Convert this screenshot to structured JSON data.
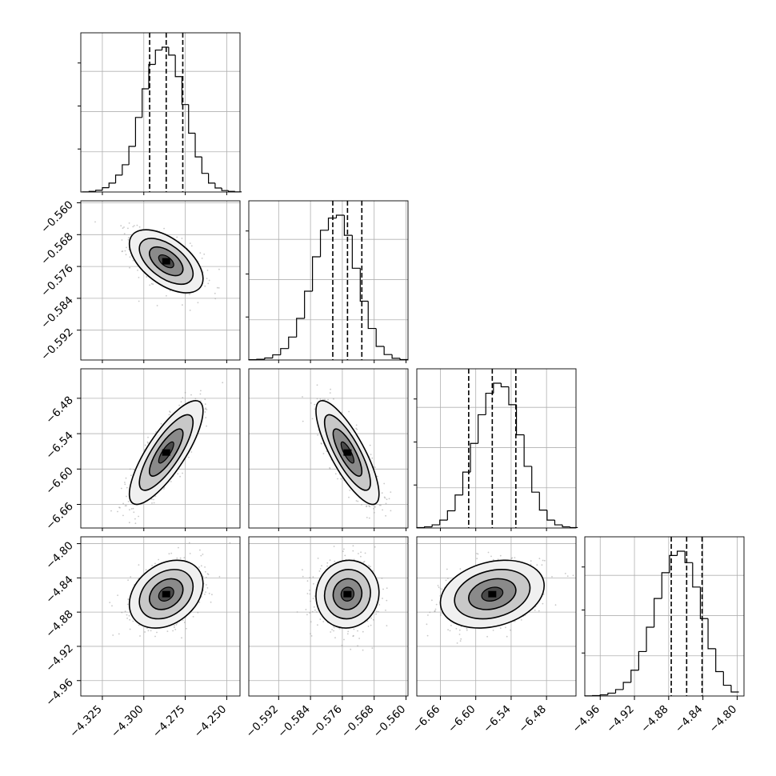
{
  "chart_data": {
    "type": "corner",
    "grid": true,
    "histogram_quantile_lines": "dashed",
    "parameters": [
      {
        "range": [
          -4.338,
          -4.242
        ],
        "ticks": [
          -4.325,
          -4.3,
          -4.275,
          -4.25
        ],
        "tick_labels": [
          "−4.325",
          "−4.300",
          "−4.275",
          "−4.250"
        ],
        "quantiles": [
          -4.2965,
          -4.2865,
          -4.2765
        ],
        "mean": -4.2865,
        "std": 0.0101,
        "hist_bins_x": [
          -4.335,
          -4.331,
          -4.327,
          -4.323,
          -4.319,
          -4.315,
          -4.311,
          -4.307,
          -4.303,
          -4.299,
          -4.295,
          -4.291,
          -4.287,
          -4.283,
          -4.279,
          -4.275,
          -4.271,
          -4.267,
          -4.263,
          -4.259,
          -4.255,
          -4.251,
          -4.247,
          -4.243
        ],
        "hist_counts": [
          1,
          4,
          12,
          30,
          62,
          118,
          190,
          318,
          520,
          720,
          890,
          990,
          1010,
          955,
          805,
          610,
          410,
          245,
          130,
          62,
          28,
          10,
          4,
          1
        ]
      },
      {
        "range": [
          -0.5995,
          -0.5595
        ],
        "ticks": [
          -0.592,
          -0.584,
          -0.576,
          -0.568,
          -0.56
        ],
        "tick_labels": [
          "−0.592",
          "−0.584",
          "−0.576",
          "−0.568",
          "−0.560"
        ],
        "quantiles": [
          -0.5784,
          -0.5747,
          -0.5711
        ],
        "mean": -0.5747,
        "std": 0.0036,
        "hist_bins_x": [
          -0.5985,
          -0.5965,
          -0.5945,
          -0.5925,
          -0.5905,
          -0.5885,
          -0.5865,
          -0.5845,
          -0.5825,
          -0.5805,
          -0.5785,
          -0.5765,
          -0.5745,
          -0.5725,
          -0.5705,
          -0.5685,
          -0.5665,
          -0.5645,
          -0.5625,
          -0.5605
        ],
        "hist_counts": [
          2,
          5,
          14,
          36,
          80,
          160,
          290,
          480,
          720,
          905,
          990,
          1010,
          870,
          640,
          410,
          220,
          95,
          38,
          12,
          3
        ]
      },
      {
        "range": [
          -6.7,
          -6.43
        ],
        "ticks": [
          -6.66,
          -6.6,
          -6.54,
          -6.48
        ],
        "tick_labels": [
          "−6.66",
          "−6.60",
          "−6.54",
          "−6.48"
        ],
        "quantiles": [
          -6.612,
          -6.572,
          -6.532
        ],
        "mean": -6.572,
        "std": 0.04,
        "hist_bins_x": [
          -6.6935,
          -6.6805,
          -6.6675,
          -6.6545,
          -6.6415,
          -6.6285,
          -6.6155,
          -6.6025,
          -6.5895,
          -6.5765,
          -6.5635,
          -6.5505,
          -6.5375,
          -6.5245,
          -6.5115,
          -6.4985,
          -6.4855,
          -6.4725,
          -6.4595,
          -6.4465,
          -6.4335
        ],
        "hist_counts": [
          3,
          8,
          22,
          55,
          120,
          230,
          390,
          590,
          790,
          940,
          1010,
          985,
          860,
          650,
          430,
          250,
          125,
          55,
          22,
          8,
          3
        ]
      },
      {
        "range": [
          -4.978,
          -4.792
        ],
        "ticks": [
          -4.96,
          -4.92,
          -4.88,
          -4.84,
          -4.8
        ],
        "tick_labels": [
          "−4.96",
          "−4.92",
          "−4.88",
          "−4.84",
          "−4.80"
        ],
        "quantiles": [
          -4.877,
          -4.859,
          -4.841
        ],
        "mean": -4.859,
        "std": 0.018,
        "hist_bins_x": [
          -4.9735,
          -4.9645,
          -4.9555,
          -4.9465,
          -4.9375,
          -4.9285,
          -4.9195,
          -4.9105,
          -4.9015,
          -4.8925,
          -4.8835,
          -4.8745,
          -4.8655,
          -4.8565,
          -4.8475,
          -4.8385,
          -4.8295,
          -4.8205,
          -4.8115,
          -4.8025
        ],
        "hist_counts": [
          1,
          3,
          8,
          20,
          45,
          95,
          180,
          310,
          480,
          680,
          860,
          980,
          1010,
          930,
          760,
          540,
          330,
          170,
          75,
          28
        ]
      }
    ],
    "correlations": {
      "1,0": -0.55,
      "2,0": 0.8,
      "2,1": -0.8,
      "3,0": 0.3,
      "3,1": 0.05,
      "3,2": 0.25
    }
  }
}
